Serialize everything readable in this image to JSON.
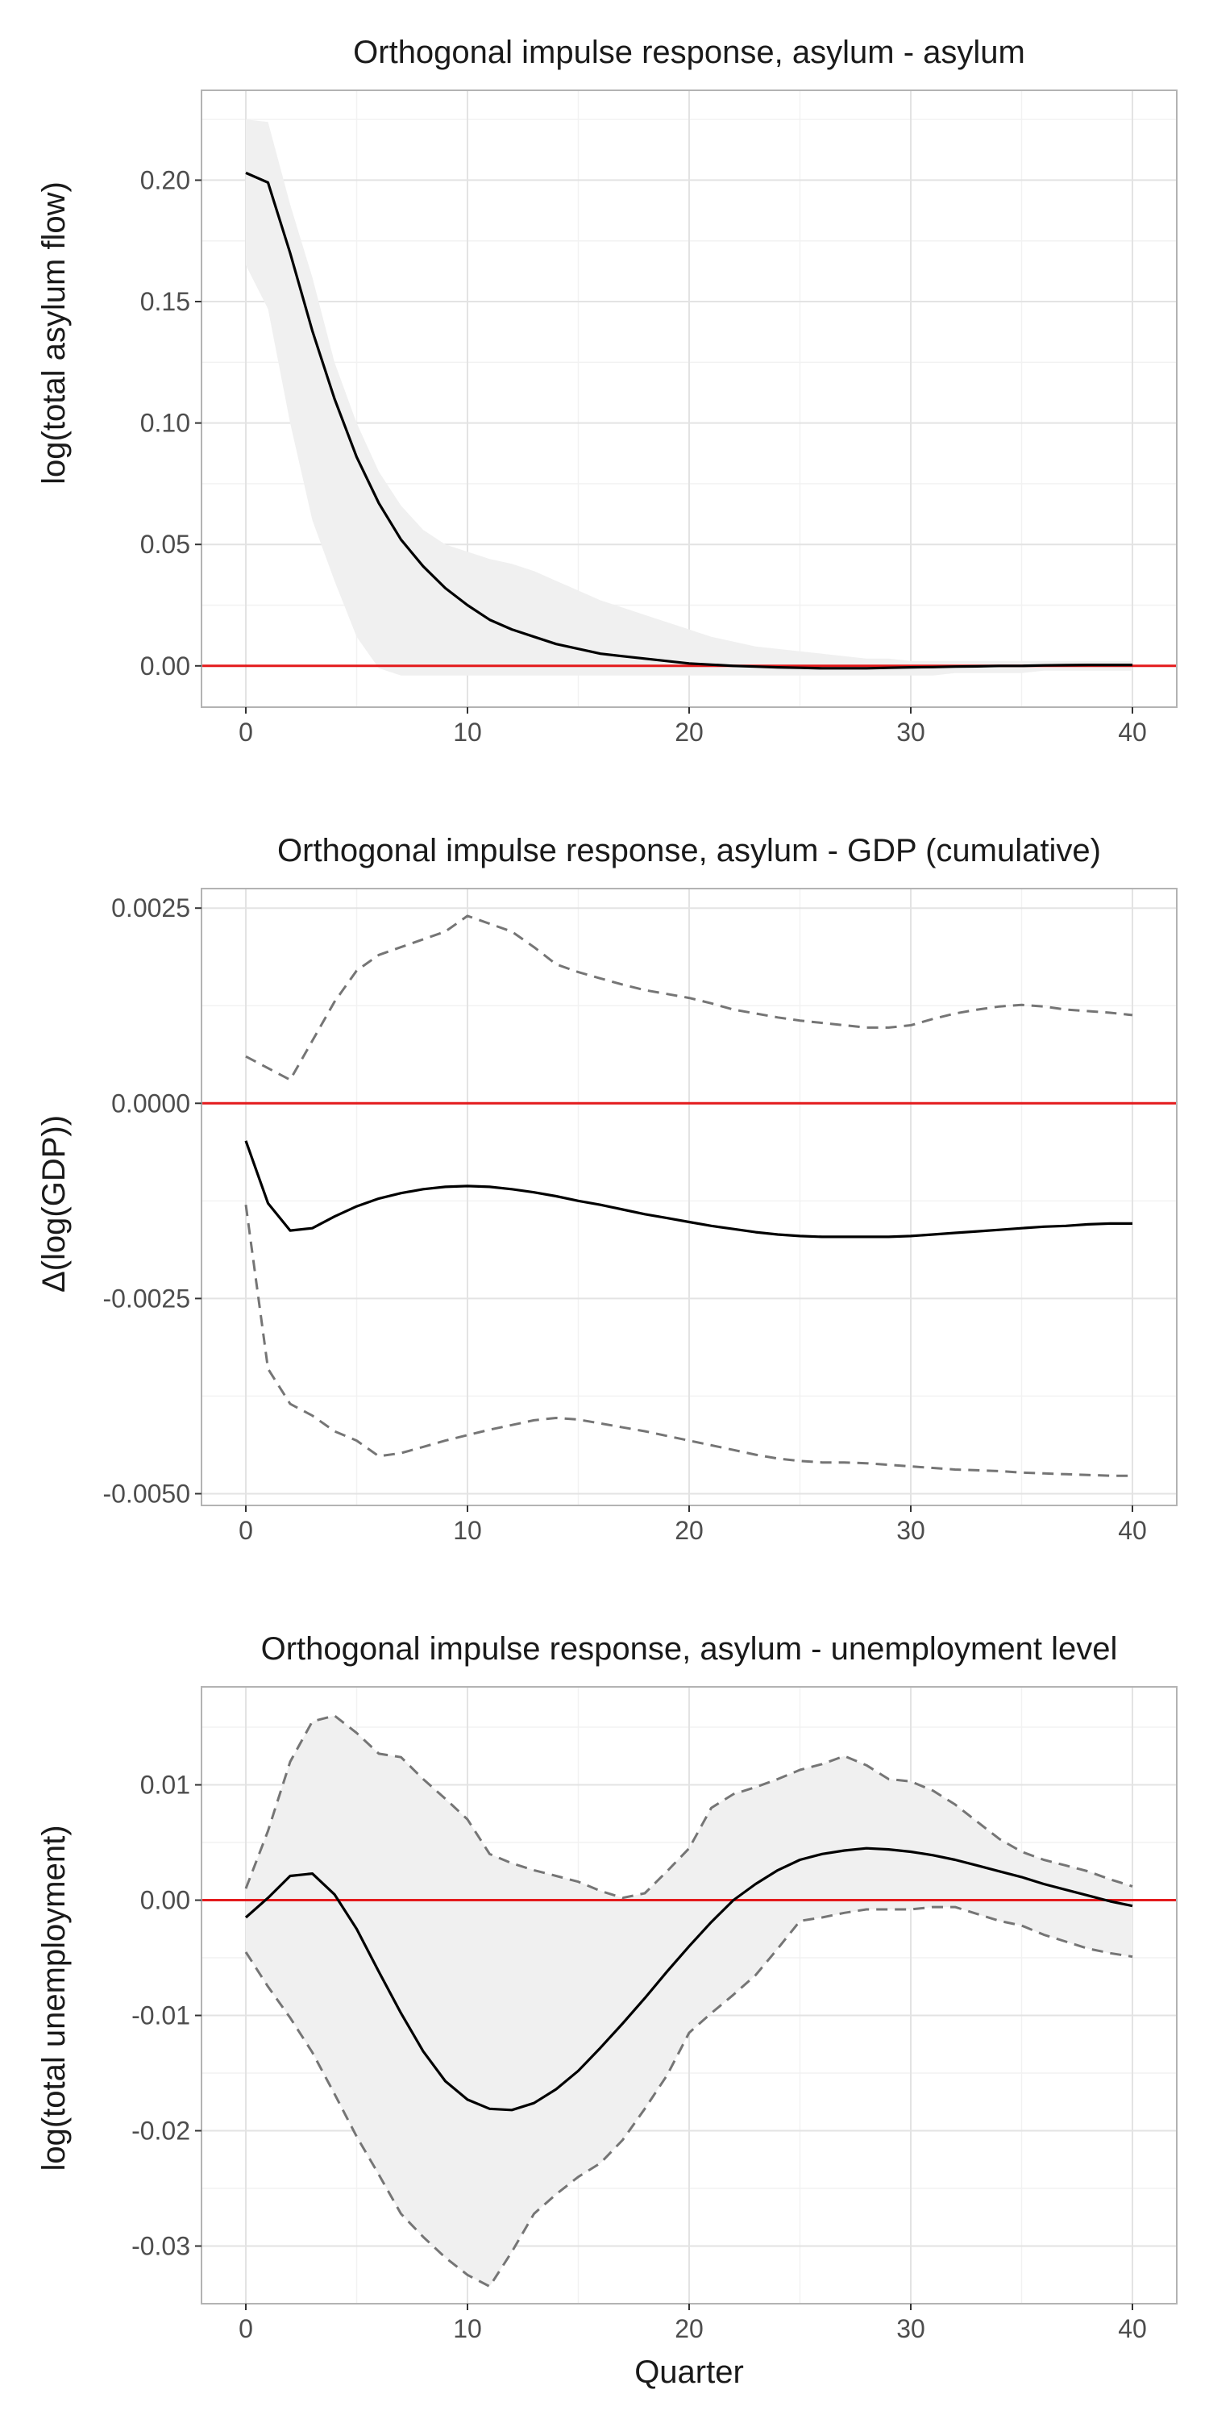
{
  "chart_data": [
    {
      "type": "line",
      "title": "Orthogonal impulse response, asylum - asylum",
      "xlabel": "",
      "ylabel": "log(total asylum flow)",
      "xlim": [
        -2,
        42
      ],
      "ylim": [
        -0.017,
        0.237
      ],
      "xticks": [
        0,
        10,
        20,
        30,
        40
      ],
      "xtick_labels": [
        "0",
        "10",
        "20",
        "30",
        "40"
      ],
      "yticks": [
        0.0,
        0.05,
        0.1,
        0.15,
        0.2
      ],
      "ytick_labels": [
        "0.00",
        "0.05",
        "0.10",
        "0.15",
        "0.20"
      ],
      "grid": true,
      "reference_line": {
        "y": 0,
        "color": "#e41a1c"
      },
      "x": [
        0,
        1,
        2,
        3,
        4,
        5,
        6,
        7,
        8,
        9,
        10,
        11,
        12,
        13,
        14,
        15,
        16,
        17,
        18,
        19,
        20,
        21,
        22,
        23,
        24,
        25,
        26,
        27,
        28,
        29,
        30,
        31,
        32,
        33,
        34,
        35,
        36,
        37,
        38,
        39,
        40
      ],
      "series": [
        {
          "role": "estimate",
          "style": "solid",
          "color": "#000000",
          "values": [
            0.203,
            0.199,
            0.17,
            0.138,
            0.11,
            0.086,
            0.067,
            0.052,
            0.041,
            0.032,
            0.025,
            0.019,
            0.015,
            0.012,
            0.009,
            0.007,
            0.005,
            0.004,
            0.003,
            0.002,
            0.001,
            0.0005,
            0.0,
            -0.0003,
            -0.0006,
            -0.0008,
            -0.001,
            -0.001,
            -0.001,
            -0.0008,
            -0.0006,
            -0.0005,
            -0.0003,
            -0.0002,
            0.0,
            0.0,
            0.0002,
            0.0003,
            0.0004,
            0.0004,
            0.0004
          ]
        },
        {
          "role": "upper",
          "style": "band",
          "color": "#f0f0f0",
          "values": [
            0.225,
            0.224,
            0.19,
            0.16,
            0.125,
            0.1,
            0.08,
            0.066,
            0.056,
            0.05,
            0.047,
            0.044,
            0.042,
            0.039,
            0.035,
            0.031,
            0.027,
            0.024,
            0.021,
            0.018,
            0.015,
            0.012,
            0.01,
            0.008,
            0.007,
            0.006,
            0.005,
            0.004,
            0.003,
            0.003,
            0.002,
            0.002,
            0.002,
            0.002,
            0.002,
            0.002,
            0.002,
            0.002,
            0.002,
            0.002,
            0.002
          ]
        },
        {
          "role": "lower",
          "style": "band",
          "color": "#f0f0f0",
          "values": [
            0.165,
            0.147,
            0.1,
            0.06,
            0.035,
            0.012,
            -0.001,
            -0.004,
            -0.004,
            -0.004,
            -0.004,
            -0.004,
            -0.004,
            -0.004,
            -0.004,
            -0.004,
            -0.004,
            -0.004,
            -0.004,
            -0.004,
            -0.004,
            -0.004,
            -0.004,
            -0.004,
            -0.004,
            -0.004,
            -0.004,
            -0.004,
            -0.004,
            -0.004,
            -0.004,
            -0.004,
            -0.003,
            -0.003,
            -0.003,
            -0.003,
            -0.002,
            -0.002,
            -0.002,
            -0.002,
            -0.002
          ]
        }
      ]
    },
    {
      "type": "line",
      "title": "Orthogonal impulse response, asylum - GDP (cumulative)",
      "xlabel": "",
      "ylabel": "Δ(log(GDP))",
      "xlim": [
        -2,
        42
      ],
      "ylim": [
        -0.00515,
        0.00275
      ],
      "xticks": [
        0,
        10,
        20,
        30,
        40
      ],
      "xtick_labels": [
        "0",
        "10",
        "20",
        "30",
        "40"
      ],
      "yticks": [
        -0.005,
        -0.0025,
        0.0,
        0.0025
      ],
      "ytick_labels": [
        "-0.0050",
        "-0.0025",
        "0.0000",
        "0.0025"
      ],
      "grid": true,
      "reference_line": {
        "y": 0,
        "color": "#e41a1c"
      },
      "x": [
        0,
        1,
        2,
        3,
        4,
        5,
        6,
        7,
        8,
        9,
        10,
        11,
        12,
        13,
        14,
        15,
        16,
        17,
        18,
        19,
        20,
        21,
        22,
        23,
        24,
        25,
        26,
        27,
        28,
        29,
        30,
        31,
        32,
        33,
        34,
        35,
        36,
        37,
        38,
        39,
        40
      ],
      "series": [
        {
          "role": "estimate",
          "style": "solid",
          "color": "#000000",
          "values": [
            -0.00048,
            -0.00128,
            -0.00163,
            -0.0016,
            -0.00145,
            -0.00132,
            -0.00122,
            -0.00115,
            -0.0011,
            -0.00107,
            -0.00106,
            -0.00107,
            -0.0011,
            -0.00114,
            -0.00119,
            -0.00125,
            -0.0013,
            -0.00136,
            -0.00142,
            -0.00147,
            -0.00152,
            -0.00157,
            -0.00161,
            -0.00165,
            -0.00168,
            -0.0017,
            -0.00171,
            -0.00171,
            -0.00171,
            -0.00171,
            -0.0017,
            -0.00168,
            -0.00166,
            -0.00164,
            -0.00162,
            -0.0016,
            -0.00158,
            -0.00157,
            -0.00155,
            -0.00154,
            -0.00154
          ]
        },
        {
          "role": "upper",
          "style": "dashed",
          "color": "#757575",
          "values": [
            0.0006,
            0.00045,
            0.0003,
            0.0008,
            0.0013,
            0.0017,
            0.0019,
            0.002,
            0.0021,
            0.0022,
            0.0024,
            0.0023,
            0.0022,
            0.002,
            0.00178,
            0.00168,
            0.0016,
            0.00152,
            0.00145,
            0.0014,
            0.00135,
            0.00128,
            0.0012,
            0.00115,
            0.0011,
            0.00106,
            0.00103,
            0.001,
            0.00097,
            0.00097,
            0.001,
            0.00108,
            0.00115,
            0.0012,
            0.00124,
            0.00126,
            0.00124,
            0.0012,
            0.00118,
            0.00116,
            0.00113
          ]
        },
        {
          "role": "lower",
          "style": "dashed",
          "color": "#757575",
          "values": [
            -0.0013,
            -0.0034,
            -0.00385,
            -0.004,
            -0.0042,
            -0.00432,
            -0.00452,
            -0.00448,
            -0.0044,
            -0.00432,
            -0.00425,
            -0.00418,
            -0.00412,
            -0.00406,
            -0.00403,
            -0.00405,
            -0.0041,
            -0.00415,
            -0.0042,
            -0.00426,
            -0.00432,
            -0.00438,
            -0.00444,
            -0.0045,
            -0.00455,
            -0.00458,
            -0.0046,
            -0.0046,
            -0.00461,
            -0.00463,
            -0.00465,
            -0.00467,
            -0.00469,
            -0.0047,
            -0.00471,
            -0.00473,
            -0.00474,
            -0.00475,
            -0.00476,
            -0.00477,
            -0.00477
          ]
        }
      ]
    },
    {
      "type": "line",
      "title": "Orthogonal impulse response, asylum - unemployment level",
      "xlabel": "Quarter",
      "ylabel": "log(total unemployment)",
      "xlim": [
        -2,
        42
      ],
      "ylim": [
        -0.035,
        0.0185
      ],
      "xticks": [
        0,
        10,
        20,
        30,
        40
      ],
      "xtick_labels": [
        "0",
        "10",
        "20",
        "30",
        "40"
      ],
      "yticks": [
        -0.03,
        -0.02,
        -0.01,
        0.0,
        0.01
      ],
      "ytick_labels": [
        "-0.03",
        "-0.02",
        "-0.01",
        "0.00",
        "0.01"
      ],
      "grid": true,
      "reference_line": {
        "y": 0,
        "color": "#e41a1c"
      },
      "x": [
        0,
        1,
        2,
        3,
        4,
        5,
        6,
        7,
        8,
        9,
        10,
        11,
        12,
        13,
        14,
        15,
        16,
        17,
        18,
        19,
        20,
        21,
        22,
        23,
        24,
        25,
        26,
        27,
        28,
        29,
        30,
        31,
        32,
        33,
        34,
        35,
        36,
        37,
        38,
        39,
        40
      ],
      "series": [
        {
          "role": "estimate",
          "style": "solid",
          "color": "#000000",
          "values": [
            -0.0015,
            0.0002,
            0.0021,
            0.0023,
            0.0005,
            -0.0025,
            -0.0062,
            -0.0098,
            -0.0131,
            -0.0157,
            -0.0173,
            -0.0181,
            -0.0182,
            -0.0176,
            -0.0164,
            -0.0148,
            -0.0128,
            -0.0107,
            -0.0085,
            -0.0062,
            -0.004,
            -0.0019,
            0.0,
            0.0014,
            0.0026,
            0.0035,
            0.004,
            0.0043,
            0.0045,
            0.0044,
            0.0042,
            0.0039,
            0.0035,
            0.003,
            0.0025,
            0.002,
            0.0014,
            0.0009,
            0.0004,
            -0.0001,
            -0.0005
          ]
        },
        {
          "role": "upper",
          "style": "dashed",
          "color": "#757575",
          "values": [
            0.001,
            0.006,
            0.012,
            0.0155,
            0.016,
            0.0145,
            0.0127,
            0.0124,
            0.0105,
            0.0088,
            0.007,
            0.004,
            0.0032,
            0.0026,
            0.0021,
            0.0016,
            0.0008,
            0.0002,
            0.0006,
            0.0025,
            0.0045,
            0.008,
            0.0092,
            0.0098,
            0.0105,
            0.0113,
            0.0118,
            0.0125,
            0.0117,
            0.0105,
            0.0103,
            0.0095,
            0.0083,
            0.0068,
            0.0053,
            0.0042,
            0.0035,
            0.003,
            0.0025,
            0.0018,
            0.0012
          ]
        },
        {
          "role": "lower",
          "style": "dashed",
          "color": "#757575",
          "values": [
            -0.0045,
            -0.0075,
            -0.0102,
            -0.0132,
            -0.0168,
            -0.0205,
            -0.0238,
            -0.0272,
            -0.0292,
            -0.031,
            -0.0325,
            -0.0335,
            -0.0305,
            -0.0272,
            -0.0255,
            -0.024,
            -0.0228,
            -0.0208,
            -0.0181,
            -0.0152,
            -0.0115,
            -0.0098,
            -0.0082,
            -0.0065,
            -0.0042,
            -0.0018,
            -0.0015,
            -0.0011,
            -0.0008,
            -0.0008,
            -0.0008,
            -0.0006,
            -0.0006,
            -0.0012,
            -0.0018,
            -0.0022,
            -0.003,
            -0.0036,
            -0.0042,
            -0.0046,
            -0.0049
          ]
        }
      ]
    }
  ]
}
